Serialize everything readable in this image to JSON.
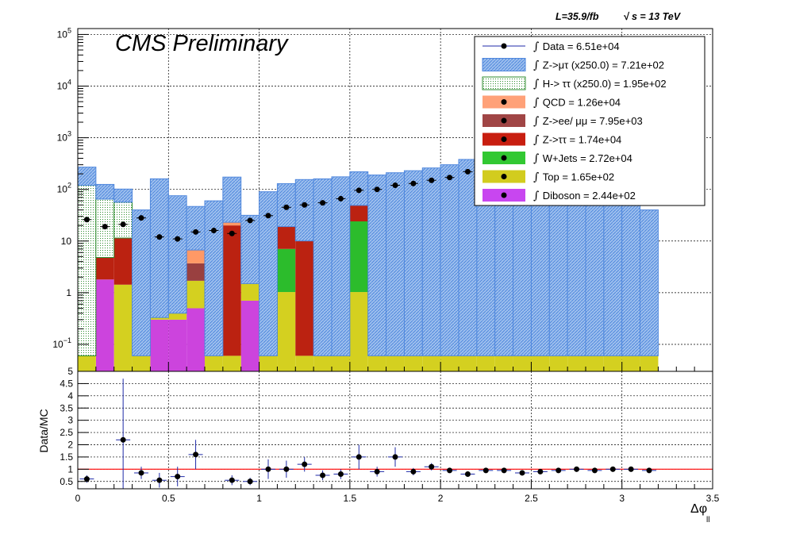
{
  "chart_data": [
    {
      "type": "stacked-histogram",
      "title": "CMS Preliminary",
      "lumi_label": "L=35.9/fb",
      "energy_label": "s = 13 TeV",
      "energy_prefix": "√",
      "y_scale": "log",
      "ylim": [
        0.03,
        130000
      ],
      "xlim": [
        0,
        3.5
      ],
      "grid": true,
      "legend_position": "top-right",
      "y_ticks": [
        {
          "value": 100000,
          "base": "10",
          "exp": "5"
        },
        {
          "value": 10000,
          "base": "10",
          "exp": "4"
        },
        {
          "value": 1000,
          "base": "10",
          "exp": "3"
        },
        {
          "value": 100,
          "base": "10",
          "exp": "2"
        },
        {
          "value": 10,
          "base": "10",
          "exp": ""
        },
        {
          "value": 1,
          "base": "1",
          "exp": ""
        },
        {
          "value": 0.1,
          "base": "10",
          "exp": "−1"
        }
      ],
      "bin_edges": [
        0,
        0.1,
        0.2,
        0.3,
        0.4,
        0.5,
        0.6,
        0.7,
        0.8,
        0.9,
        1.0,
        1.1,
        1.2,
        1.3,
        1.4,
        1.5,
        1.6,
        1.7,
        1.8,
        1.9,
        2.0,
        2.1,
        2.2,
        2.3,
        2.4,
        2.5,
        2.6,
        2.7,
        2.8,
        2.9,
        3.0,
        3.1,
        3.2
      ],
      "series": [
        {
          "name": "Diboson = 2.44e+02",
          "color": "#cc44dd",
          "values": [
            0.03,
            1.8,
            0.03,
            0.03,
            0.3,
            0.3,
            0.5,
            0.03,
            0.03,
            0.7,
            0.03,
            0.03,
            0.03,
            0.03,
            0.03,
            0.03,
            0.03,
            0.03,
            0.03,
            0.03,
            0.03,
            0.03,
            0.03,
            0.03,
            0.03,
            0.03,
            0.03,
            0.03,
            0.03,
            0.03,
            0.03,
            0.03
          ]
        },
        {
          "name": "Top = 1.65e+02",
          "color": "#d4d020",
          "values": [
            0.03,
            0,
            1.4,
            0.03,
            0.03,
            0.1,
            1.2,
            0.03,
            0.03,
            0.8,
            0.03,
            1.0,
            0.03,
            0.03,
            0.03,
            1.0,
            0.03,
            0.03,
            0.03,
            0.03,
            0.03,
            0.03,
            0.03,
            0.03,
            0.03,
            0.03,
            0.03,
            0.03,
            0.03,
            0.03,
            0.03,
            0.03
          ]
        },
        {
          "name": "W+Jets = 2.72e+04",
          "color": "#2cbc2c",
          "values": [
            0,
            0,
            0,
            0,
            0,
            0,
            0,
            0,
            0,
            0,
            0,
            6,
            0,
            0,
            0,
            23,
            0,
            0,
            0,
            0,
            0,
            0,
            0,
            0,
            0,
            0,
            0,
            0,
            0,
            0,
            0,
            0
          ]
        },
        {
          "name": "Z->ττ = 1.74e+04",
          "color": "#bb2211",
          "values": [
            0,
            3,
            10,
            0,
            0,
            0,
            0,
            0,
            20,
            0,
            0,
            12,
            10,
            0,
            0,
            25,
            0,
            0,
            0,
            0,
            0,
            0,
            0,
            0,
            0,
            0,
            0,
            0,
            0,
            0,
            0,
            0
          ]
        },
        {
          "name": "Z->ee/ μμ = 7.95e+03",
          "color": "#994040",
          "values": [
            0,
            0,
            0,
            0,
            0,
            0,
            2,
            0,
            0,
            0,
            0,
            0,
            0,
            0,
            0,
            0,
            0,
            0,
            0,
            0,
            0,
            0,
            0,
            0,
            0,
            0,
            0,
            0,
            0,
            0,
            0,
            0
          ]
        },
        {
          "name": "QCD = 1.26e+04",
          "color": "#ff9966",
          "values": [
            0,
            0,
            0,
            0,
            0,
            0,
            3,
            0,
            3,
            0,
            0,
            0,
            0,
            0,
            0,
            0,
            0,
            0,
            0,
            0,
            0,
            0,
            0,
            0,
            0,
            0,
            0,
            0,
            0,
            0,
            0,
            0
          ]
        },
        {
          "name": "H-> ττ (x250.0) = 1.95e+02",
          "color": "#229922",
          "values": [
            120,
            60,
            45,
            0,
            0,
            0,
            0,
            0,
            0,
            0,
            0,
            0,
            0,
            0,
            0,
            0,
            0,
            0,
            0,
            0,
            0,
            0,
            0,
            0,
            0,
            0,
            0,
            0,
            0,
            0,
            0,
            0
          ]
        },
        {
          "name": "Z->μτ (x250.0) = 7.21e+02",
          "color": "#6699dd",
          "values": [
            150,
            60,
            45,
            40,
            160,
            75,
            40,
            60,
            150,
            30,
            90,
            110,
            145,
            160,
            175,
            170,
            190,
            210,
            230,
            260,
            300,
            380,
            470,
            600,
            700,
            850,
            950,
            1050,
            1150,
            1200,
            800,
            40
          ]
        }
      ],
      "data": {
        "name": "Data = 6.51e+04",
        "x": [
          0.05,
          0.15,
          0.25,
          0.35,
          0.45,
          0.55,
          0.65,
          0.75,
          0.85,
          0.95,
          1.05,
          1.15,
          1.25,
          1.35,
          1.45,
          1.55,
          1.65,
          1.75,
          1.85,
          1.95,
          2.05,
          2.15,
          2.25,
          2.35,
          2.45,
          2.55,
          2.65,
          2.75,
          2.85,
          2.95,
          3.05,
          3.15
        ],
        "y": [
          26,
          19,
          21,
          28,
          12,
          11,
          15,
          16,
          14,
          25,
          31,
          45,
          50,
          55,
          66,
          96,
          100,
          120,
          130,
          150,
          170,
          220,
          250,
          290,
          320,
          360,
          430,
          510,
          560,
          650,
          820,
          1000
        ],
        "color": "#000000"
      },
      "legend": [
        {
          "label": "Data = 6.51e+04",
          "style": "data"
        },
        {
          "label": "Z->μτ (x250.0) = 7.21e+02",
          "style": "hatch",
          "color": "#4f87dd"
        },
        {
          "label": "H-> ττ (x250.0) = 1.95e+02",
          "style": "hatch",
          "color": "#2e8b2e"
        },
        {
          "label": "QCD = 1.26e+04",
          "style": "fill",
          "color": "#ffa178"
        },
        {
          "label": "Z->ee/ μμ = 7.95e+03",
          "style": "fill",
          "color": "#a04545"
        },
        {
          "label": "Z->ττ = 1.74e+04",
          "style": "fill",
          "color": "#c81e10"
        },
        {
          "label": "W+Jets = 2.72e+04",
          "style": "fill",
          "color": "#32c832"
        },
        {
          "label": "Top = 1.65e+02",
          "style": "fill",
          "color": "#d2cc1e"
        },
        {
          "label": "Diboson = 2.44e+02",
          "style": "fill",
          "color": "#c846f0"
        }
      ]
    },
    {
      "type": "scatter",
      "ylabel": "Data/MC",
      "xlabel": "Δφ",
      "xlabel_sub": "ll",
      "xlim": [
        0,
        3.5
      ],
      "ylim": [
        0.2,
        5
      ],
      "reference_line": 1.0,
      "y_tick_labels": [
        "0.5",
        "1",
        "1.5",
        "2",
        "2.5",
        "3",
        "3.5",
        "4",
        "4.5",
        "5"
      ],
      "x_tick_labels": [
        "0",
        "0.5",
        "1",
        "1.5",
        "2",
        "2.5",
        "3",
        "3.5"
      ],
      "points": {
        "x": [
          0.05,
          0.25,
          0.35,
          0.45,
          0.55,
          0.65,
          0.85,
          0.95,
          1.05,
          1.15,
          1.25,
          1.35,
          1.45,
          1.55,
          1.65,
          1.75,
          1.85,
          1.95,
          2.05,
          2.15,
          2.25,
          2.35,
          2.45,
          2.55,
          2.65,
          2.75,
          2.85,
          2.95,
          3.05,
          3.15
        ],
        "y": [
          0.6,
          2.2,
          0.85,
          0.55,
          0.7,
          1.6,
          0.55,
          0.5,
          1.0,
          1.0,
          1.2,
          0.75,
          0.8,
          1.5,
          0.9,
          1.5,
          0.9,
          1.1,
          0.95,
          0.8,
          0.95,
          0.95,
          0.85,
          0.9,
          0.95,
          1.0,
          0.95,
          1.0,
          1.0,
          0.95
        ],
        "err": [
          0.15,
          2.5,
          0.25,
          0.3,
          0.4,
          0.6,
          0.2,
          0.15,
          0.4,
          0.35,
          0.3,
          0.2,
          0.2,
          0.5,
          0.2,
          0.4,
          0.15,
          0.15,
          0.08,
          0.07,
          0.06,
          0.05,
          0.05,
          0.05,
          0.05,
          0.04,
          0.04,
          0.04,
          0.04,
          0.04
        ]
      }
    }
  ]
}
